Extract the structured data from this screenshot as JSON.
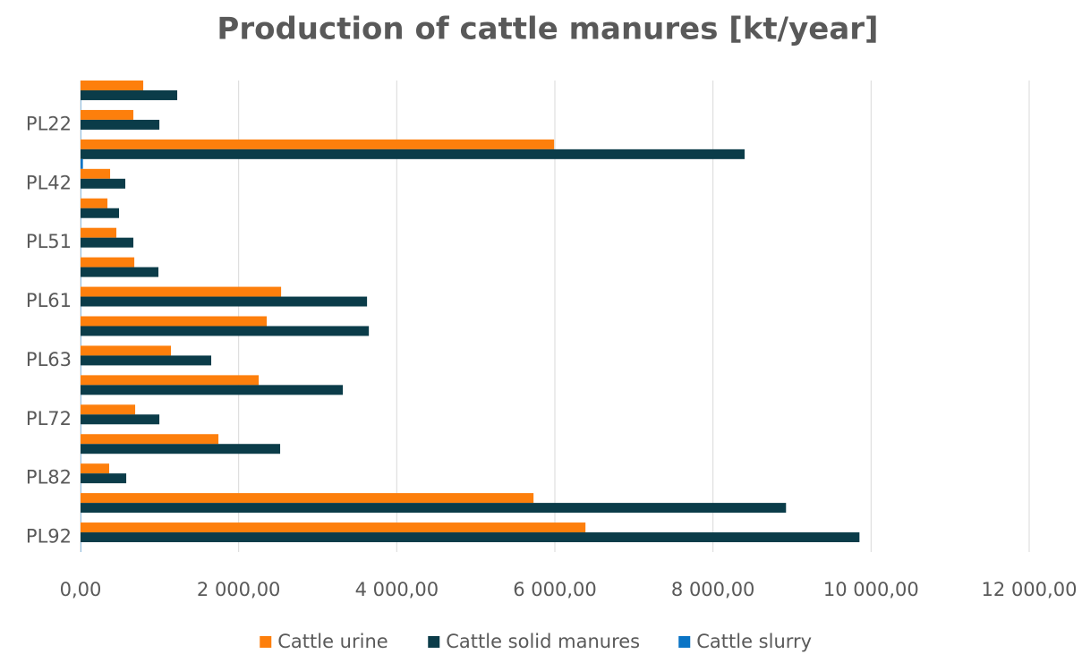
{
  "chart_data": {
    "type": "hbar",
    "title": "Production of cattle manures [kt/year]",
    "categories": [
      null,
      "PL22",
      null,
      "PL42",
      null,
      "PL51",
      null,
      "PL61",
      null,
      "PL63",
      null,
      "PL72",
      null,
      "PL82",
      null,
      "PL92"
    ],
    "series": [
      {
        "name": "Cattle urine",
        "color": "#fd7f0c",
        "values": [
          793,
          668,
          5990,
          374,
          340,
          453,
          680,
          2537,
          2355,
          1144,
          2254,
          691,
          1744,
          362,
          5730,
          6387
        ]
      },
      {
        "name": "Cattle solid manures",
        "color": "#0b3c49",
        "values": [
          1223,
          997,
          8400,
          566,
          487,
          668,
          985,
          3624,
          3647,
          1653,
          3318,
          997,
          2525,
          578,
          8924,
          9853
        ]
      },
      {
        "name": "Cattle slurry",
        "color": "#0a74c5",
        "values": [
          5,
          5,
          30,
          5,
          5,
          5,
          5,
          5,
          5,
          5,
          5,
          5,
          5,
          5,
          5,
          5
        ]
      }
    ],
    "xlim": [
      0,
      12000
    ],
    "xticks": [
      {
        "value": 0,
        "label": "0,00"
      },
      {
        "value": 2000,
        "label": "2 000,00"
      },
      {
        "value": 4000,
        "label": "4 000,00"
      },
      {
        "value": 6000,
        "label": "6 000,00"
      },
      {
        "value": 8000,
        "label": "8 000,00"
      },
      {
        "value": 10000,
        "label": "10 000,00"
      },
      {
        "value": 12000,
        "label": "12 000,00"
      }
    ],
    "grid": true,
    "legend": "bottom"
  }
}
